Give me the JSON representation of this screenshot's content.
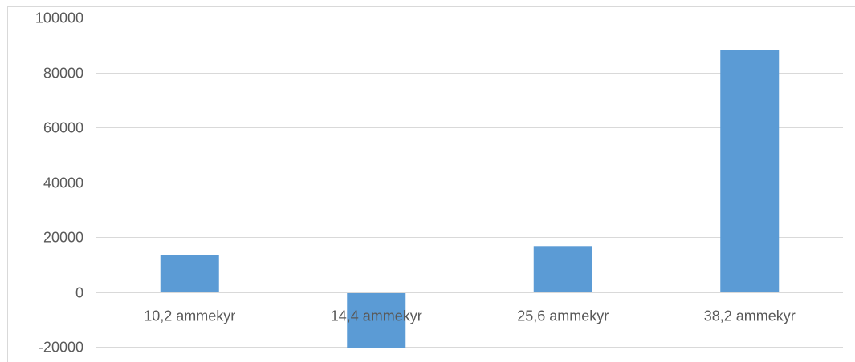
{
  "chart_data": {
    "type": "bar",
    "categories": [
      "10,2 ammekyr",
      "14,4 ammekyr",
      "25,6 ammekyr",
      "38,2 ammekyr"
    ],
    "values": [
      13500,
      -20500,
      16700,
      88200
    ],
    "title": "",
    "xlabel": "",
    "ylabel": "",
    "ylim": [
      -20000,
      100000
    ],
    "yticks": [
      "100000",
      "80000",
      "60000",
      "40000",
      "20000",
      "0",
      "-20000"
    ],
    "grid": true,
    "legend": "none",
    "bar_color": "#5b9bd5",
    "grid_color": "#d9d9d9",
    "text_color": "#595959"
  }
}
